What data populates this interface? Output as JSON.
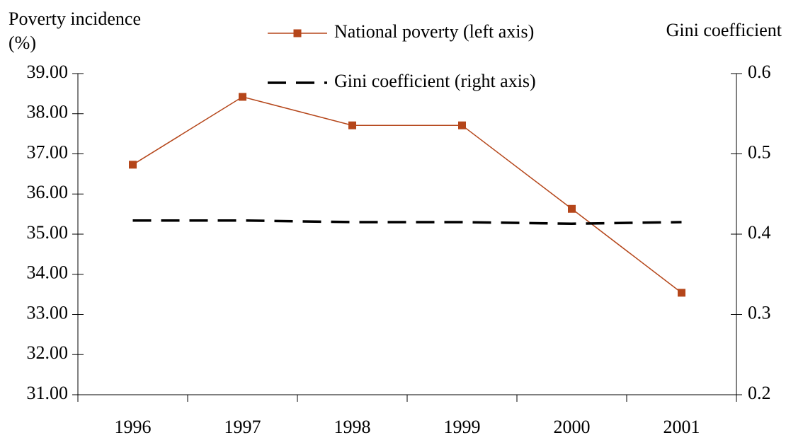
{
  "chart_data": {
    "type": "line",
    "ylabel": "Poverty incidence (%)",
    "y2label": "Gini coefficient",
    "categories": [
      "1996",
      "1997",
      "1998",
      "1999",
      "2000",
      "2001"
    ],
    "series": [
      {
        "name": "National poverty (left axis)",
        "color": "#b5461a",
        "marker": "square",
        "values": [
          36.73,
          38.42,
          37.71,
          37.71,
          35.63,
          33.54
        ]
      },
      {
        "name": "Gini coefficient (right axis)",
        "color": "#000000",
        "dashed": true,
        "axis": "y2",
        "values": [
          0.417,
          0.417,
          0.415,
          0.415,
          0.413,
          0.415
        ]
      }
    ],
    "ylim": [
      31,
      39
    ],
    "yticks": [
      {
        "value": 31,
        "label": "31.00"
      },
      {
        "value": 32,
        "label": "32.00"
      },
      {
        "value": 33,
        "label": "33.00"
      },
      {
        "value": 34,
        "label": "34.00"
      },
      {
        "value": 35,
        "label": "35.00"
      },
      {
        "value": 36,
        "label": "36.00"
      },
      {
        "value": 37,
        "label": "37.00"
      },
      {
        "value": 38,
        "label": "38.00"
      },
      {
        "value": 39,
        "label": "39.00"
      }
    ],
    "y2lim": [
      0.2,
      0.6
    ],
    "y2ticks": [
      0.2,
      0.3,
      0.4,
      0.5,
      0.6
    ]
  }
}
